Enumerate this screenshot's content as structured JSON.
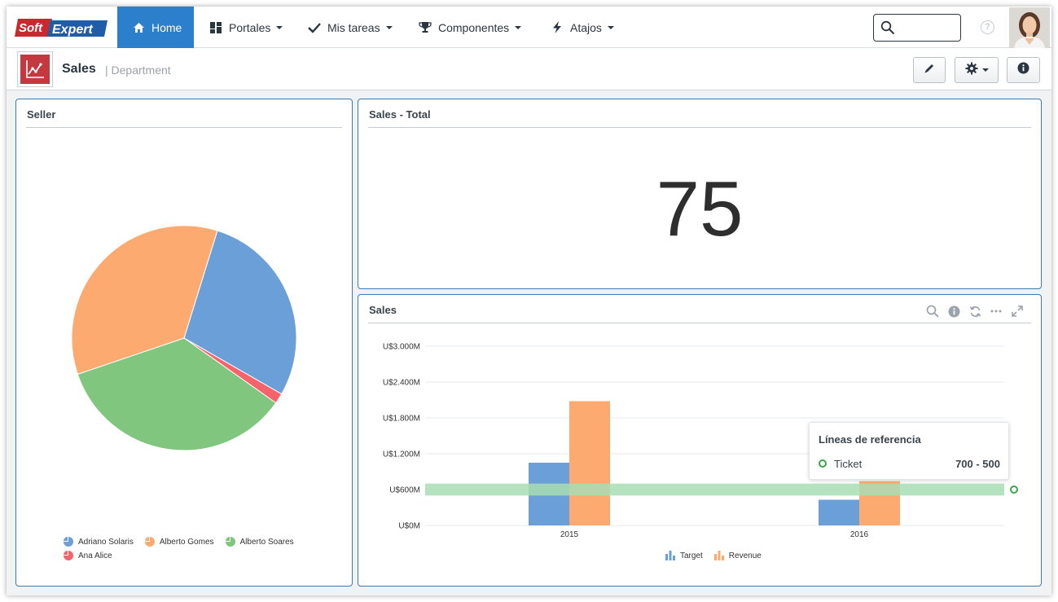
{
  "nav": {
    "logo_text": "SoftExpert",
    "items": [
      {
        "label": "Home",
        "icon": "home-icon",
        "active": true
      },
      {
        "label": "Portales",
        "icon": "dashboard-grid-icon"
      },
      {
        "label": "Mis tareas",
        "icon": "check-icon"
      },
      {
        "label": "Componentes",
        "icon": "trophy-icon"
      },
      {
        "label": "Atajos",
        "icon": "bolt-icon"
      }
    ],
    "search": {
      "value": "",
      "placeholder": ""
    },
    "help_glyph": "?"
  },
  "page": {
    "title": "Sales",
    "subtitle": "| Department",
    "icon": "sales-chart-icon",
    "toolbar": [
      "edit-pencil-icon",
      "settings-gear-icon",
      "info-icon"
    ]
  },
  "panels": {
    "seller": {
      "title": "Seller"
    },
    "total": {
      "title": "Sales - Total",
      "value": "75"
    },
    "sales": {
      "title": "Sales",
      "tools": [
        "search-icon",
        "info-icon",
        "refresh-icon",
        "more-icon",
        "expand-icon"
      ],
      "tooltip": {
        "title": "Líneas de referencia",
        "label": "Ticket",
        "value": "700 - 500"
      }
    }
  },
  "colors": {
    "accent": "#2c7fcb",
    "blue": "#6a9fd8",
    "orange": "#fdaa70",
    "green": "#80c67e",
    "red": "#f7636b",
    "refline": "#a8ddb4"
  },
  "chart_data": [
    {
      "type": "pie",
      "title": "Seller",
      "series": [
        {
          "name": "Adriano Solaris",
          "value": 28.5
        },
        {
          "name": "Ana Alice",
          "value": 1.5
        },
        {
          "name": "Alberto Soares",
          "value": 35.0
        },
        {
          "name": "Alberto Gomes",
          "value": 35.0
        }
      ],
      "legend_order": [
        "Adriano Solaris",
        "Alberto Gomes",
        "Alberto Soares",
        "Ana Alice"
      ],
      "legend": "bottom"
    },
    {
      "type": "bar",
      "title": "Sales",
      "categories": [
        "2015",
        "2016"
      ],
      "series": [
        {
          "name": "Target",
          "values": [
            1050,
            430
          ]
        },
        {
          "name": "Revenue",
          "values": [
            2080,
            740
          ]
        }
      ],
      "yticks": [
        "U$0M",
        "U$600M",
        "U$1.200M",
        "U$1.800M",
        "U$2.400M",
        "U$3.000M"
      ],
      "ylim": [
        0,
        3000
      ],
      "reference_band": {
        "name": "Ticket",
        "from": 500,
        "to": 700
      },
      "grid": true,
      "legend": "bottom"
    }
  ]
}
